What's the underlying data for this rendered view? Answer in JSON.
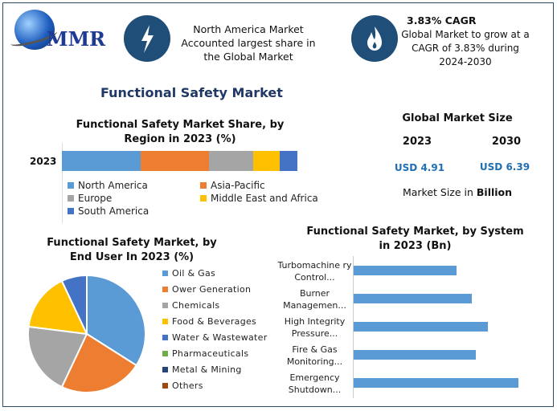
{
  "logo": {
    "text": "MMR"
  },
  "highlight1": {
    "icon": "lightning-icon",
    "text": "North America Market Accounted largest share in the Global Market"
  },
  "highlight2": {
    "icon": "flame-icon",
    "title": "3.83% CAGR",
    "text": "Global Market to grow at a CAGR of 3.83% during 2024-2030"
  },
  "main_title": "Functional Safety Market",
  "market_size": {
    "title": "Global Market Size",
    "years": [
      "2023",
      "2030"
    ],
    "values": [
      "USD 4.91",
      "USD 6.39"
    ],
    "note_prefix": "Market Size in ",
    "note_unit": "Billion",
    "value_color": "#1f6fb2"
  },
  "chart_data": [
    {
      "type": "bar",
      "orientation": "horizontal-stacked",
      "title": "Functional Safety Market Share, by Region in 2023 (%)",
      "categories": [
        "2023"
      ],
      "series": [
        {
          "name": "North America",
          "values": [
            33.4
          ],
          "color": "#5b9bd5"
        },
        {
          "name": "Asia-Pacific",
          "values": [
            29
          ],
          "color": "#ed7d31"
        },
        {
          "name": "Europe",
          "values": [
            18.8
          ],
          "color": "#a5a5a5"
        },
        {
          "name": "Middle East and Africa",
          "values": [
            11.3
          ],
          "color": "#ffc000"
        },
        {
          "name": "South America",
          "values": [
            7.5
          ],
          "color": "#4472c4"
        }
      ],
      "legend": "bottom"
    },
    {
      "type": "pie",
      "title": "Functional Safety Market, by End User In 2023 (%)",
      "labels": [
        "Oil & Gas",
        "Ower Generation",
        "Chemicals",
        "Food & Beverages",
        "Water & Wastewater",
        "Pharmaceuticals",
        "Metal & Mining",
        "Others"
      ],
      "values": [
        34,
        23,
        20,
        16,
        7,
        0,
        0,
        0
      ],
      "colors": [
        "#5b9bd5",
        "#ed7d31",
        "#a5a5a5",
        "#ffc000",
        "#4472c4",
        "#70ad47",
        "#264478",
        "#9e480e"
      ],
      "legend": "right"
    },
    {
      "type": "bar",
      "orientation": "horizontal",
      "title": "Functional Safety Market, by System in 2023 (Bn)",
      "categories": [
        "Turbomachine ry Control...",
        "Burner Managemen...",
        "High Integrity Pressure...",
        "Fire & Gas Monitoring...",
        "Emergency Shutdown..."
      ],
      "values": [
        1.25,
        1.44,
        1.63,
        1.49,
        2.0
      ],
      "color": "#5b9bd5",
      "xlim": [
        0,
        2.2
      ]
    }
  ]
}
